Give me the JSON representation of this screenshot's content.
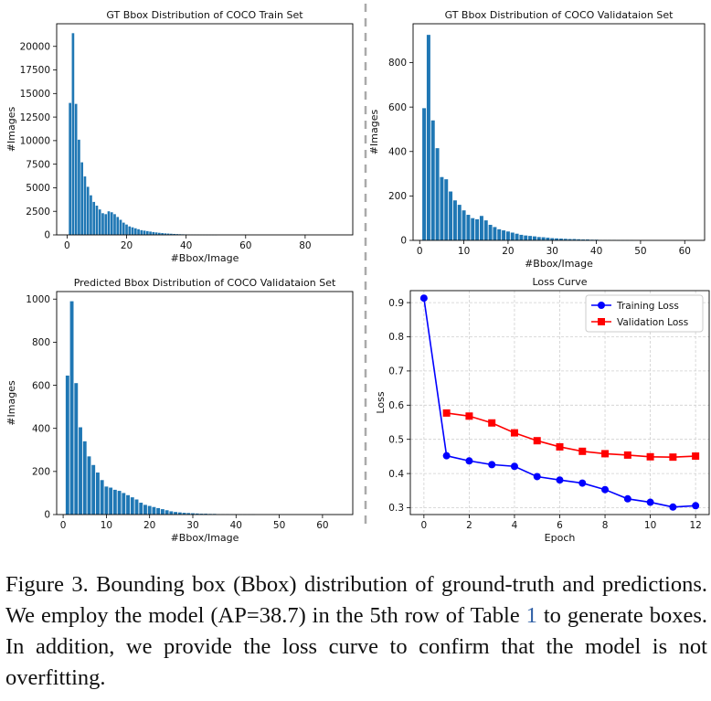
{
  "chart_data": [
    {
      "type": "bar",
      "title": "GT Bbox Distribution of COCO Train Set",
      "xlabel": "#Bbox/Image",
      "ylabel": "#Images",
      "xlim": [
        -3.5,
        96
      ],
      "ylim": [
        0,
        22400
      ],
      "xticks": [
        0,
        20,
        40,
        60,
        80
      ],
      "yticks": [
        0,
        2500,
        5000,
        7500,
        10000,
        12500,
        15000,
        17500,
        20000
      ],
      "x": [
        1,
        2,
        3,
        4,
        5,
        6,
        7,
        8,
        9,
        10,
        11,
        12,
        13,
        14,
        15,
        16,
        17,
        18,
        19,
        20,
        21,
        22,
        23,
        24,
        25,
        26,
        27,
        28,
        29,
        30,
        31,
        32,
        33,
        34,
        35,
        36,
        37,
        38,
        39,
        40,
        41,
        42,
        43,
        44,
        45,
        46,
        47,
        48,
        49,
        50
      ],
      "values": [
        14000,
        21400,
        13900,
        10100,
        7700,
        6200,
        5100,
        4200,
        3500,
        3100,
        2700,
        2300,
        2200,
        2500,
        2400,
        2200,
        1900,
        1600,
        1300,
        1100,
        900,
        800,
        700,
        600,
        500,
        450,
        400,
        350,
        300,
        260,
        220,
        190,
        160,
        140,
        120,
        100,
        85,
        70,
        60,
        50,
        40,
        35,
        30,
        25,
        20,
        15,
        12,
        10,
        8,
        6
      ]
    },
    {
      "type": "bar",
      "title": "GT Bbox Distribution of COCO Validataion Set",
      "xlabel": "#Bbox/Image",
      "ylabel": "#Images",
      "xlim": [
        -1.5,
        64.5
      ],
      "ylim": [
        0,
        975
      ],
      "xticks": [
        0,
        10,
        20,
        30,
        40,
        50,
        60
      ],
      "yticks": [
        0,
        200,
        400,
        600,
        800
      ],
      "x": [
        1,
        2,
        3,
        4,
        5,
        6,
        7,
        8,
        9,
        10,
        11,
        12,
        13,
        14,
        15,
        16,
        17,
        18,
        19,
        20,
        21,
        22,
        23,
        24,
        25,
        26,
        27,
        28,
        29,
        30,
        31,
        32,
        33,
        34,
        35,
        36,
        37,
        38,
        39,
        40,
        41,
        42,
        43,
        44,
        45,
        46,
        47,
        48
      ],
      "values": [
        595,
        925,
        540,
        415,
        285,
        275,
        220,
        180,
        160,
        135,
        115,
        100,
        95,
        110,
        90,
        70,
        60,
        50,
        45,
        40,
        35,
        30,
        25,
        22,
        20,
        18,
        15,
        14,
        12,
        10,
        9,
        8,
        7,
        6,
        6,
        5,
        4,
        4,
        3,
        3,
        2,
        2,
        2,
        2,
        1,
        1,
        1,
        1
      ]
    },
    {
      "type": "bar",
      "title": "Predicted Bbox Distribution of COCO Validataion Set",
      "xlabel": "#Bbox/Image",
      "ylabel": "#Images",
      "xlim": [
        -1.5,
        67
      ],
      "ylim": [
        0,
        1035
      ],
      "xticks": [
        0,
        10,
        20,
        30,
        40,
        50,
        60
      ],
      "yticks": [
        0,
        200,
        400,
        600,
        800,
        1000
      ],
      "x": [
        1,
        2,
        3,
        4,
        5,
        6,
        7,
        8,
        9,
        10,
        11,
        12,
        13,
        14,
        15,
        16,
        17,
        18,
        19,
        20,
        21,
        22,
        23,
        24,
        25,
        26,
        27,
        28,
        29,
        30,
        31,
        32,
        33,
        34,
        35,
        36,
        37,
        38,
        39,
        40,
        41,
        42,
        43,
        44
      ],
      "values": [
        645,
        990,
        610,
        405,
        340,
        270,
        230,
        195,
        160,
        130,
        125,
        115,
        110,
        100,
        90,
        80,
        70,
        55,
        45,
        40,
        35,
        30,
        25,
        20,
        15,
        12,
        10,
        8,
        7,
        6,
        5,
        4,
        4,
        3,
        3,
        2,
        2,
        2,
        1,
        1,
        1,
        1,
        1,
        1
      ]
    },
    {
      "type": "line",
      "title": "Loss Curve",
      "xlabel": "Epoch",
      "ylabel": "Loss",
      "xlim": [
        -0.6,
        12.6
      ],
      "ylim": [
        0.28,
        0.935
      ],
      "grid": true,
      "legend_position": "top-right",
      "xticks": [
        0,
        2,
        4,
        6,
        8,
        10,
        12
      ],
      "yticks": [
        0.3,
        0.4,
        0.5,
        0.6,
        0.7,
        0.8,
        0.9
      ],
      "series": [
        {
          "name": "Training Loss",
          "color": "#0000ff",
          "marker": "circle",
          "x": [
            0,
            1,
            2,
            3,
            4,
            5,
            6,
            7,
            8,
            9,
            10,
            11,
            12
          ],
          "values": [
            0.913,
            0.452,
            0.437,
            0.426,
            0.421,
            0.391,
            0.381,
            0.372,
            0.353,
            0.326,
            0.316,
            0.302,
            0.306
          ]
        },
        {
          "name": "Validation Loss",
          "color": "#ff0000",
          "marker": "square",
          "x": [
            1,
            2,
            3,
            4,
            5,
            6,
            7,
            8,
            9,
            10,
            11,
            12
          ],
          "values": [
            0.577,
            0.568,
            0.548,
            0.519,
            0.496,
            0.478,
            0.465,
            0.458,
            0.454,
            0.449,
            0.448,
            0.451
          ]
        }
      ]
    }
  ],
  "colors": {
    "bar": "#1f77b4",
    "divider": "#aaaaaa",
    "grid": "#cfcfcf",
    "ref_link": "#2f5fa5"
  },
  "caption": {
    "before_ref": "Figure 3. Bounding box (Bbox) distribution of ground-truth and predictions. We employ the model (AP=38.7) in the 5th row of Table ",
    "ref": "1",
    "after_ref": " to generate boxes. In addition, we provide the loss curve to confirm that the model is not overfitting."
  }
}
